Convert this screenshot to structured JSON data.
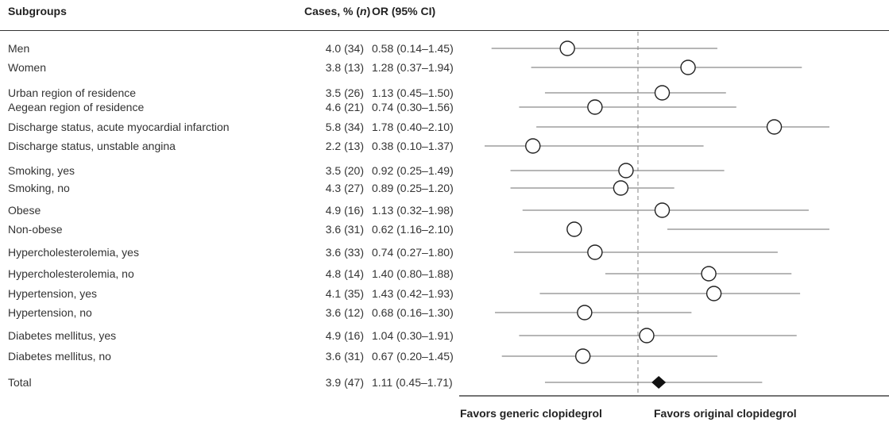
{
  "header": {
    "subgroups": "Subgroups",
    "cases_prefix": "Cases, % (",
    "cases_n": "n",
    "cases_suffix": ")",
    "or_ci": "OR (95% CI)"
  },
  "chart_data": {
    "type": "forest",
    "reference_line": "dashed",
    "rows": [
      {
        "label": "Men",
        "cases": "4.0 (34)",
        "or_ci": "0.58 (0.14–1.45)",
        "est": 0.58,
        "lo": 0.14,
        "hi": 1.45,
        "marker": "circle"
      },
      {
        "label": "Women",
        "cases": "3.8 (13)",
        "or_ci": "1.28 (0.37–1.94)",
        "est": 1.28,
        "lo": 0.37,
        "hi": 1.94,
        "marker": "circle"
      },
      {
        "label": "Urban region of residence",
        "cases": "3.5 (26)",
        "or_ci": "1.13 (0.45–1.50)",
        "est": 1.13,
        "lo": 0.45,
        "hi": 1.5,
        "marker": "circle"
      },
      {
        "label": "Aegean region of residence",
        "cases": "4.6 (21)",
        "or_ci": "0.74 (0.30–1.56)",
        "est": 0.74,
        "lo": 0.3,
        "hi": 1.56,
        "marker": "circle"
      },
      {
        "label": "Discharge status, acute myocardial infarction",
        "cases": "5.8 (34)",
        "or_ci": "1.78 (0.40–2.10)",
        "est": 1.78,
        "lo": 0.4,
        "hi": 2.1,
        "marker": "circle"
      },
      {
        "label": "Discharge status, unstable angina",
        "cases": "2.2 (13)",
        "or_ci": "0.38 (0.10–1.37)",
        "est": 0.38,
        "lo": 0.1,
        "hi": 1.37,
        "marker": "circle"
      },
      {
        "label": "Smoking, yes",
        "cases": "3.5 (20)",
        "or_ci": "0.92 (0.25–1.49)",
        "est": 0.92,
        "lo": 0.25,
        "hi": 1.49,
        "marker": "circle"
      },
      {
        "label": "Smoking, no",
        "cases": "4.3 (27)",
        "or_ci": "0.89 (0.25–1.20)",
        "est": 0.89,
        "lo": 0.25,
        "hi": 1.2,
        "marker": "circle"
      },
      {
        "label": "Obese",
        "cases": "4.9 (16)",
        "or_ci": "1.13 (0.32–1.98)",
        "est": 1.13,
        "lo": 0.32,
        "hi": 1.98,
        "marker": "circle"
      },
      {
        "label": "Non-obese",
        "cases": "3.6 (31)",
        "or_ci": "0.62 (1.16–2.10)",
        "est": 0.62,
        "lo": 1.16,
        "hi": 2.1,
        "marker": "circle"
      },
      {
        "label": "Hypercholesterolemia, yes",
        "cases": "3.6 (33)",
        "or_ci": "0.74 (0.27–1.80)",
        "est": 0.74,
        "lo": 0.27,
        "hi": 1.8,
        "marker": "circle"
      },
      {
        "label": "Hypercholesterolemia, no",
        "cases": "4.8 (14)",
        "or_ci": "1.40 (0.80–1.88)",
        "est": 1.4,
        "lo": 0.8,
        "hi": 1.88,
        "marker": "circle"
      },
      {
        "label": "Hypertension, yes",
        "cases": "4.1 (35)",
        "or_ci": "1.43 (0.42–1.93)",
        "est": 1.43,
        "lo": 0.42,
        "hi": 1.93,
        "marker": "circle"
      },
      {
        "label": "Hypertension, no",
        "cases": "3.6 (12)",
        "or_ci": "0.68 (0.16–1.30)",
        "est": 0.68,
        "lo": 0.16,
        "hi": 1.3,
        "marker": "circle"
      },
      {
        "label": "Diabetes mellitus, yes",
        "cases": "4.9 (16)",
        "or_ci": "1.04 (0.30–1.91)",
        "est": 1.04,
        "lo": 0.3,
        "hi": 1.91,
        "marker": "circle"
      },
      {
        "label": "Diabetes mellitus, no",
        "cases": "3.6 (31)",
        "or_ci": "0.67 (0.20–1.45)",
        "est": 0.67,
        "lo": 0.2,
        "hi": 1.45,
        "marker": "circle"
      },
      {
        "label": "Total",
        "cases": "3.9 (47)",
        "or_ci": "1.11 (0.45–1.71)",
        "est": 1.11,
        "lo": 0.45,
        "hi": 1.71,
        "marker": "diamond"
      }
    ],
    "favors_left": "Favors generic clopidegrol",
    "favors_right": "Favors original clopidegrol",
    "colors": {
      "ci_line": "#8a8a8a",
      "ref_line": "#9a9a9a",
      "marker_stroke": "#222222",
      "diamond_fill": "#111111"
    }
  }
}
